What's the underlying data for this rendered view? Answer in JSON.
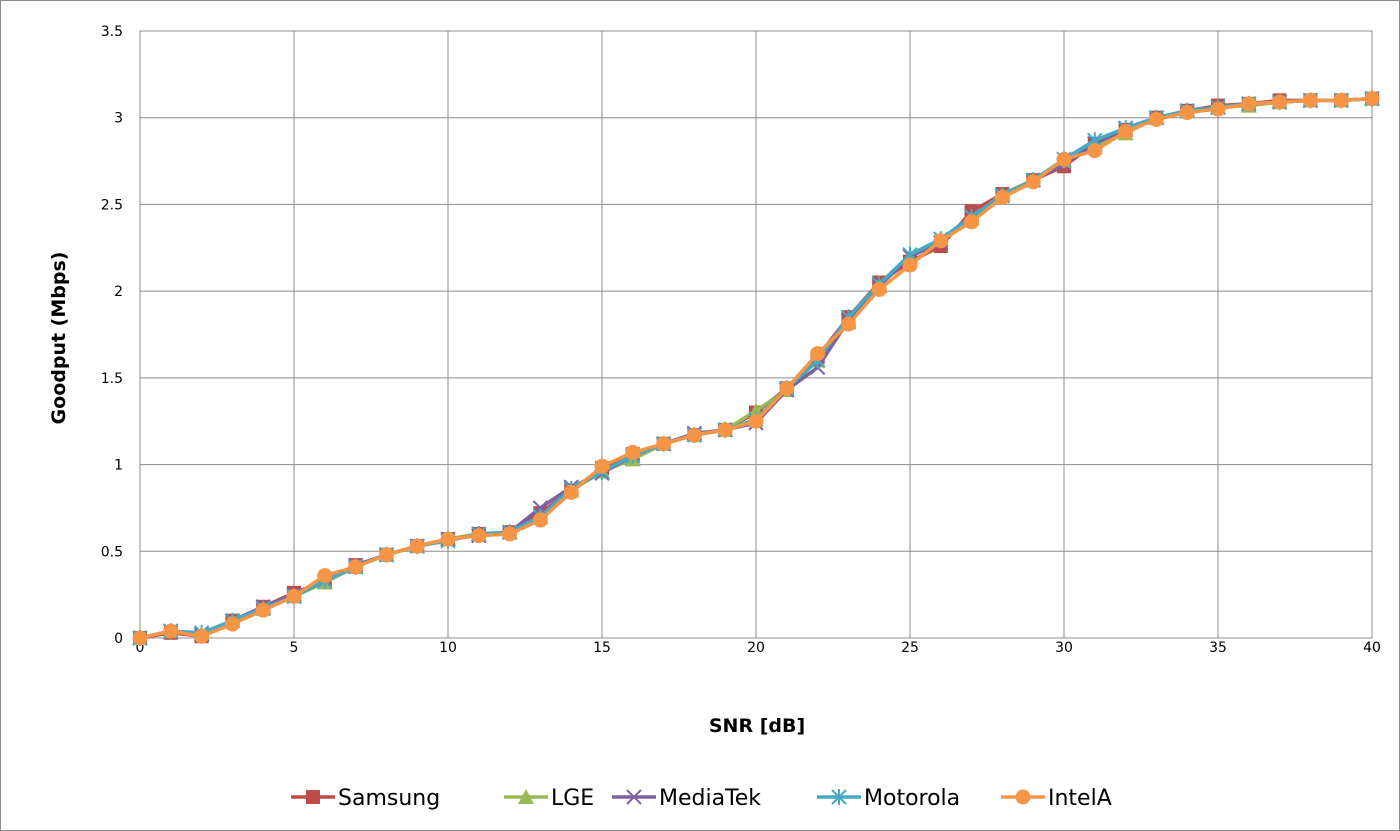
{
  "chart_data": {
    "type": "line",
    "title": "",
    "xlabel": "SNR [dB]",
    "ylabel": "Goodput (Mbps)",
    "xlim": [
      0,
      40
    ],
    "ylim": [
      0,
      3.5
    ],
    "xticks": [
      0,
      5,
      10,
      15,
      20,
      25,
      30,
      35,
      40
    ],
    "yticks": [
      0,
      0.5,
      1,
      1.5,
      2,
      2.5,
      3,
      3.5
    ],
    "grid": true,
    "legend_position": "bottom",
    "x": [
      0,
      1,
      2,
      3,
      4,
      5,
      6,
      7,
      8,
      9,
      10,
      11,
      12,
      13,
      14,
      15,
      16,
      17,
      18,
      19,
      20,
      21,
      22,
      23,
      24,
      25,
      26,
      27,
      28,
      29,
      30,
      31,
      32,
      33,
      34,
      35,
      36,
      37,
      38,
      39,
      40
    ],
    "series": [
      {
        "name": "Samsung",
        "color": "#be4b48",
        "marker": "square",
        "values": [
          0,
          0.03,
          0.01,
          0.1,
          0.18,
          0.26,
          0.33,
          0.42,
          0.48,
          0.53,
          0.57,
          0.6,
          0.61,
          0.72,
          0.85,
          0.98,
          1.06,
          1.12,
          1.17,
          1.2,
          1.3,
          1.44,
          1.62,
          1.85,
          2.05,
          2.17,
          2.26,
          2.46,
          2.56,
          2.64,
          2.72,
          2.85,
          2.93,
          3.0,
          3.04,
          3.07,
          3.08,
          3.1,
          3.1,
          3.1,
          3.11
        ]
      },
      {
        "name": "LGE",
        "color": "#98b954",
        "marker": "triangle",
        "values": [
          0,
          0.04,
          0.02,
          0.1,
          0.17,
          0.24,
          0.32,
          0.41,
          0.48,
          0.53,
          0.57,
          0.6,
          0.61,
          0.7,
          0.85,
          0.96,
          1.03,
          1.12,
          1.17,
          1.2,
          1.31,
          1.43,
          1.6,
          1.82,
          2.03,
          2.2,
          2.3,
          2.42,
          2.56,
          2.64,
          2.75,
          2.83,
          2.91,
          3.0,
          3.04,
          3.06,
          3.07,
          3.09,
          3.1,
          3.1,
          3.11
        ]
      },
      {
        "name": "MediaTek",
        "color": "#7d60a0",
        "marker": "x",
        "values": [
          0,
          0.04,
          0.02,
          0.1,
          0.18,
          0.25,
          0.33,
          0.42,
          0.48,
          0.53,
          0.57,
          0.59,
          0.61,
          0.75,
          0.87,
          0.95,
          1.05,
          1.12,
          1.18,
          1.2,
          1.24,
          1.43,
          1.56,
          1.83,
          2.03,
          2.2,
          2.28,
          2.43,
          2.55,
          2.64,
          2.73,
          2.85,
          2.94,
          3.0,
          3.04,
          3.06,
          3.08,
          3.09,
          3.1,
          3.1,
          3.11
        ]
      },
      {
        "name": "Motorola",
        "color": "#46aac5",
        "marker": "star",
        "values": [
          0,
          0.04,
          0.03,
          0.1,
          0.17,
          0.24,
          0.33,
          0.41,
          0.48,
          0.53,
          0.56,
          0.6,
          0.61,
          0.7,
          0.86,
          0.96,
          1.05,
          1.12,
          1.17,
          1.2,
          1.26,
          1.44,
          1.6,
          1.85,
          2.04,
          2.21,
          2.3,
          2.43,
          2.55,
          2.64,
          2.76,
          2.87,
          2.94,
          3.0,
          3.04,
          3.06,
          3.08,
          3.09,
          3.1,
          3.1,
          3.11
        ]
      },
      {
        "name": "IntelA",
        "color": "#f69546",
        "marker": "circle",
        "values": [
          0,
          0.04,
          0.01,
          0.08,
          0.16,
          0.24,
          0.36,
          0.41,
          0.48,
          0.53,
          0.57,
          0.59,
          0.6,
          0.68,
          0.84,
          0.99,
          1.07,
          1.12,
          1.17,
          1.2,
          1.25,
          1.44,
          1.64,
          1.81,
          2.01,
          2.15,
          2.29,
          2.4,
          2.54,
          2.63,
          2.76,
          2.81,
          2.92,
          2.99,
          3.03,
          3.05,
          3.08,
          3.09,
          3.1,
          3.1,
          3.11
        ]
      }
    ]
  }
}
